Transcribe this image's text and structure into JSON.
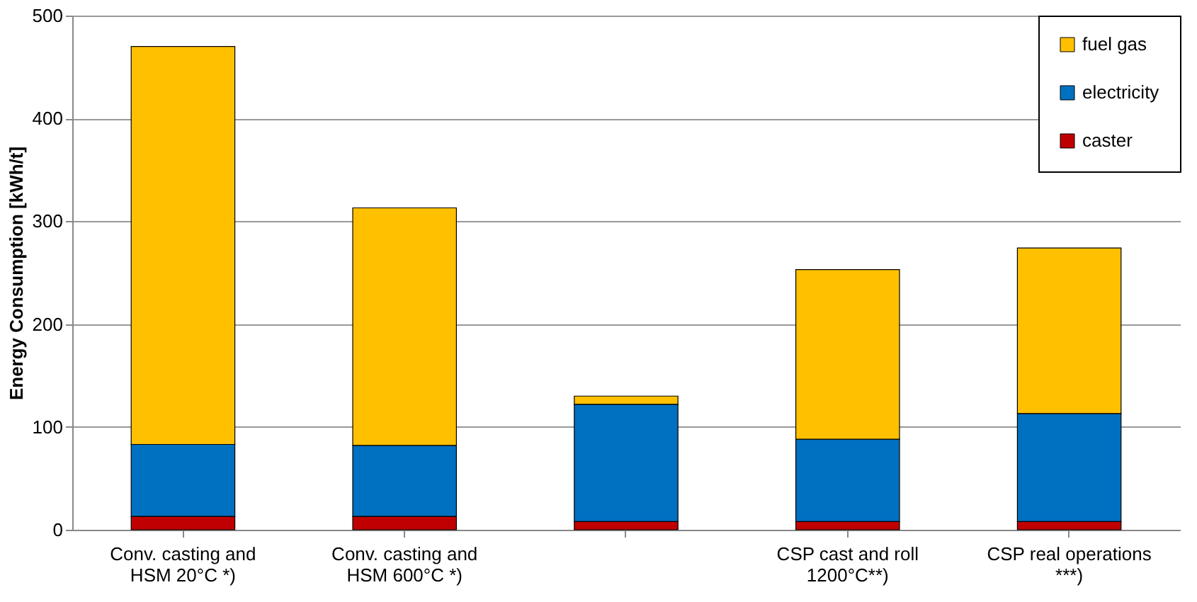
{
  "chart_data": {
    "type": "bar",
    "stacked": true,
    "ylabel": "Energy Consumption [kWh/t]",
    "categories": [
      "Conv. casting and HSM 20°C *)",
      "Conv. casting and HSM 600°C *)",
      null,
      "CSP cast and roll 1200°C**)",
      "CSP real operations ***)"
    ],
    "series": [
      {
        "name": "caster",
        "color": "#c00000",
        "values": [
          13,
          13,
          8,
          8,
          8
        ]
      },
      {
        "name": "electricity",
        "color": "#0070c0",
        "values": [
          70,
          69,
          114,
          80,
          105
        ]
      },
      {
        "name": "fuel gas",
        "color": "#ffc000",
        "values": [
          387,
          231,
          8,
          165,
          161
        ]
      }
    ],
    "ylim": [
      0,
      500
    ],
    "yticks": [
      0,
      100,
      200,
      300,
      400,
      500
    ],
    "grid": "y",
    "legend": "top right"
  }
}
